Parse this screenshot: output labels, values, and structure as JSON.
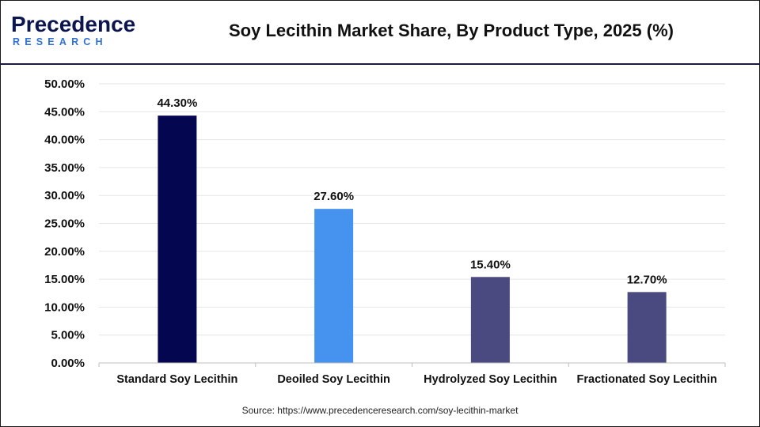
{
  "brand": {
    "logo_top": "Precedence",
    "logo_bottom": "RESEARCH",
    "navy": "#0b1650",
    "blue": "#2e6fd8"
  },
  "source_text": "Source: https://www.precedenceresearch.com/soy-lecithin-market",
  "chart_data": {
    "type": "bar",
    "title": "Soy Lecithin Market Share, By Product Type, 2025 (%)",
    "categories": [
      "Standard Soy Lecithin",
      "Deoiled Soy Lecithin",
      "Hydrolyzed Soy Lecithin",
      "Fractionated Soy Lecithin"
    ],
    "values": [
      44.3,
      27.6,
      15.4,
      12.7
    ],
    "value_labels": [
      "44.30%",
      "27.60%",
      "15.40%",
      "12.70%"
    ],
    "bar_colors": [
      "#04064f",
      "#4593ee",
      "#4a4a80",
      "#4a4a80"
    ],
    "ylim": [
      0,
      50
    ],
    "yticks": [
      0,
      5,
      10,
      15,
      20,
      25,
      30,
      35,
      40,
      45,
      50
    ],
    "ytick_labels": [
      "0.00%",
      "5.00%",
      "10.00%",
      "15.00%",
      "20.00%",
      "25.00%",
      "30.00%",
      "35.00%",
      "40.00%",
      "45.00%",
      "50.00%"
    ],
    "xlabel": "",
    "ylabel": "",
    "grid": true,
    "legend": false
  }
}
